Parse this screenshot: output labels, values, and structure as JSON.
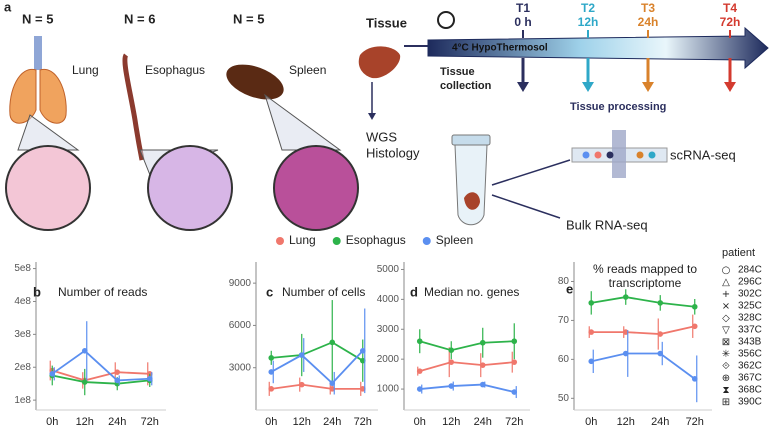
{
  "diagram": {
    "panel_label": "a",
    "organs": [
      {
        "n": "N = 5",
        "name": "Lung"
      },
      {
        "n": "N = 6",
        "name": "Esophagus"
      },
      {
        "n": "N = 5",
        "name": "Spleen"
      }
    ],
    "tissue": "Tissue",
    "timepoints": [
      {
        "label": "T1",
        "time": "0 h",
        "color": "#2b2f5e"
      },
      {
        "label": "T2",
        "time": "12h",
        "color": "#2fa8c8"
      },
      {
        "label": "T3",
        "time": "24h",
        "color": "#d9822b"
      },
      {
        "label": "T4",
        "time": "72h",
        "color": "#d33a2f"
      }
    ],
    "solution": "4°C HypoThermosol",
    "collection": [
      "Tissue",
      "collection"
    ],
    "processing": "Tissue processing",
    "wgs": "WGS",
    "histology": "Histology",
    "scrna": "scRNA-seq",
    "bulk": "Bulk RNA-seq"
  },
  "chart_data": [
    {
      "type": "line",
      "panel_label": "b",
      "title": "Number of reads",
      "categories": [
        "0h",
        "12h",
        "24h",
        "72h"
      ],
      "ylim": [
        70000000,
        520000000
      ],
      "yticks": [
        {
          "value": 100000000,
          "label": "1e8"
        },
        {
          "value": 200000000,
          "label": "2e8"
        },
        {
          "value": 300000000,
          "label": "3e8"
        },
        {
          "value": 400000000,
          "label": "4e8"
        },
        {
          "value": 500000000,
          "label": "5e8"
        }
      ],
      "series": [
        {
          "name": "Lung",
          "color": "#f0776c",
          "values": [
            190000000,
            160000000,
            185000000,
            180000000
          ],
          "errors": [
            30000000,
            25000000,
            30000000,
            35000000
          ]
        },
        {
          "name": "Esophagus",
          "color": "#2db34a",
          "values": [
            175000000,
            155000000,
            150000000,
            160000000
          ],
          "errors": [
            30000000,
            40000000,
            20000000,
            20000000
          ]
        },
        {
          "name": "Spleen",
          "color": "#5b8ff0",
          "values": [
            180000000,
            250000000,
            160000000,
            165000000
          ],
          "errors": [
            20000000,
            90000000,
            15000000,
            20000000
          ]
        }
      ]
    },
    {
      "type": "line",
      "panel_label": "c",
      "title": "Number of cells",
      "categories": [
        "0h",
        "12h",
        "24h",
        "72h"
      ],
      "ylim": [
        0,
        10500
      ],
      "yticks": [
        3000,
        6000,
        9000
      ],
      "series": [
        {
          "color": "#f0776c",
          "values": [
            1500,
            1800,
            1500,
            1500
          ],
          "errors": [
            500,
            500,
            400,
            500
          ]
        },
        {
          "color": "#2db34a",
          "values": [
            3700,
            3900,
            4800,
            3500
          ],
          "errors": [
            500,
            1500,
            3000,
            1500
          ]
        },
        {
          "color": "#5b8ff0",
          "values": [
            2700,
            3900,
            1900,
            4200
          ],
          "errors": [
            800,
            1200,
            800,
            3000
          ]
        }
      ]
    },
    {
      "type": "line",
      "panel_label": "d",
      "title": "Median no. genes",
      "categories": [
        "0h",
        "12h",
        "24h",
        "72h"
      ],
      "ylim": [
        300,
        5250
      ],
      "yticks": [
        1000,
        2000,
        3000,
        4000,
        5000
      ],
      "series": [
        {
          "color": "#f0776c",
          "values": [
            1600,
            1900,
            1800,
            1900
          ],
          "errors": [
            150,
            500,
            400,
            350
          ]
        },
        {
          "color": "#2db34a",
          "values": [
            2600,
            2300,
            2550,
            2600
          ],
          "errors": [
            400,
            300,
            500,
            600
          ]
        },
        {
          "color": "#5b8ff0",
          "values": [
            1000,
            1100,
            1150,
            900
          ],
          "errors": [
            150,
            150,
            100,
            200
          ]
        }
      ]
    },
    {
      "type": "line",
      "panel_label": "e",
      "title": "% reads mapped to transcriptome",
      "categories": [
        "0h",
        "12h",
        "24h",
        "72h"
      ],
      "ylim": [
        47,
        85
      ],
      "yticks": [
        50,
        60,
        70,
        80
      ],
      "series": [
        {
          "color": "#f0776c",
          "values": [
            67,
            67,
            66.5,
            68.5
          ],
          "errors": [
            1.5,
            1.5,
            4,
            3
          ]
        },
        {
          "color": "#2db34a",
          "values": [
            74.5,
            76,
            74.5,
            73.5
          ],
          "errors": [
            3,
            2,
            2,
            2
          ]
        },
        {
          "color": "#5b8ff0",
          "values": [
            59.5,
            61.5,
            61.5,
            55
          ],
          "errors": [
            3,
            6,
            3,
            6
          ]
        }
      ]
    }
  ],
  "patient_legend": {
    "title": "patient",
    "entries": [
      {
        "symbol": "○",
        "id": "284C"
      },
      {
        "symbol": "△",
        "id": "296C"
      },
      {
        "symbol": "+",
        "id": "302C"
      },
      {
        "symbol": "×",
        "id": "325C"
      },
      {
        "symbol": "◇",
        "id": "328C"
      },
      {
        "symbol": "▽",
        "id": "337C"
      },
      {
        "symbol": "⊠",
        "id": "343B"
      },
      {
        "symbol": "✳",
        "id": "356C"
      },
      {
        "symbol": "⟐",
        "id": "362C"
      },
      {
        "symbol": "⊕",
        "id": "367C"
      },
      {
        "symbol": "⧗",
        "id": "368C"
      },
      {
        "symbol": "⊞",
        "id": "390C"
      }
    ]
  }
}
